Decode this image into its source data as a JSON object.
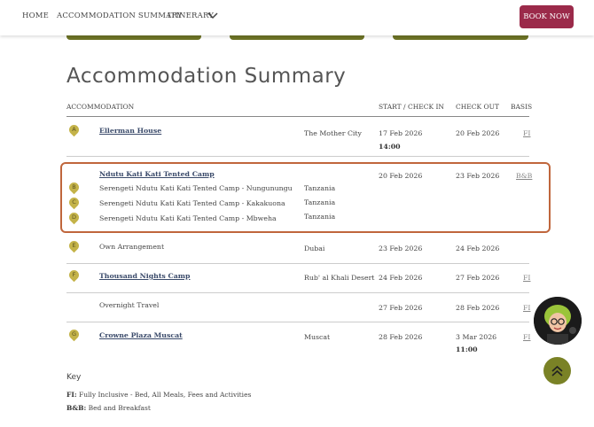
{
  "nav": {
    "home": "HOME",
    "summary": "ACCOMMODATION SUMMARY",
    "itinerary": "ITINERARY",
    "book": "BOOK NOW"
  },
  "title": "Accommodation Summary",
  "headers": {
    "accommodation": "ACCOMMODATION",
    "start": "START / CHECK IN",
    "checkout": "CHECK OUT",
    "basis": "BASIS"
  },
  "rows": [
    {
      "pin": "A",
      "name": "Ellerman House",
      "location": "The Mother City",
      "start": "17 Feb 2026",
      "time": "14:00",
      "checkout": "20 Feb 2026",
      "basis": "FI"
    },
    {
      "name": "Ndutu Kati Kati Tented Camp",
      "start": "20 Feb 2026",
      "checkout": "23 Feb 2026",
      "basis": "B&B",
      "subs": [
        {
          "pin": "B",
          "name": "Serengeti Ndutu Kati Kati Tented Camp - Nungunungu",
          "location": "Tanzania"
        },
        {
          "pin": "C",
          "name": "Serengeti Ndutu Kati Kati Tented Camp - Kakakuona",
          "location": "Tanzania"
        },
        {
          "pin": "D",
          "name": "Serengeti Ndutu Kati Kati Tented Camp - Mbweha",
          "location": "Tanzania"
        }
      ]
    },
    {
      "pin": "E",
      "name": "Own Arrangement",
      "location": "Dubai",
      "start": "23 Feb 2026",
      "checkout": "24 Feb 2026"
    },
    {
      "pin": "F",
      "name": "Thousand Nights Camp",
      "location": "Rub' al Khali Desert",
      "start": "24 Feb 2026",
      "checkout": "27 Feb 2026",
      "basis": "FI"
    },
    {
      "name": "Overnight Travel",
      "start": "27 Feb 2026",
      "checkout": "28 Feb 2026",
      "basis": "FI"
    },
    {
      "pin": "G",
      "name": "Crowne Plaza Muscat",
      "location": "Muscat",
      "start": "28 Feb 2026",
      "checkout": "3 Mar 2026",
      "time": "11:00",
      "basis": "FI"
    }
  ],
  "key": {
    "title": "Key",
    "fi_code": "FI:",
    "fi_text": " Fully Inclusive - Bed, All Meals, Fees and Activities",
    "bb_code": "B&B:",
    "bb_text": " Bed and Breakfast"
  },
  "colors": {
    "accent": "#9b2a4a",
    "olive": "#6e7426",
    "pin": "#c4b349",
    "highlight": "#c0663c"
  }
}
